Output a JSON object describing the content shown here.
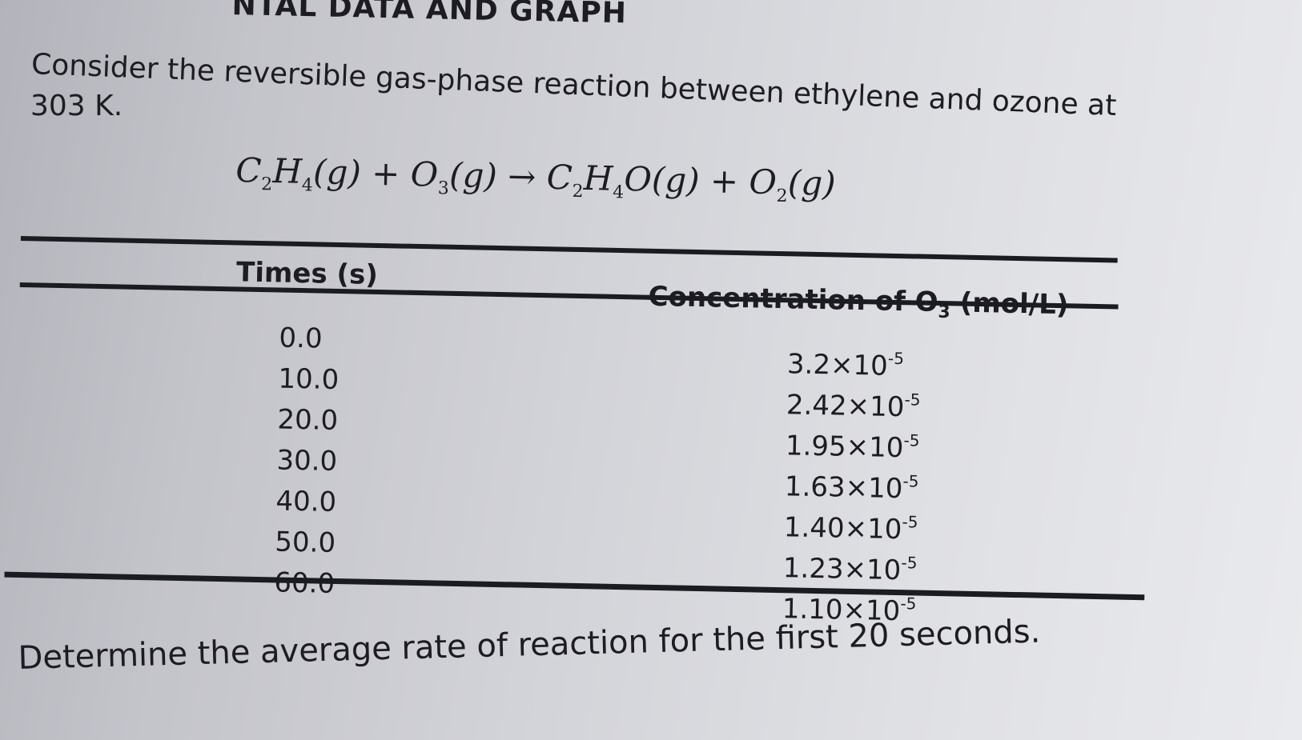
{
  "heading": "NTAL DATA AND GRAPH",
  "intro": {
    "line1": "Consider the reversible gas-phase reaction between ethylene and ozone at",
    "line2": "303 K."
  },
  "equation": {
    "r1_sym_a": "C",
    "r1_sub_a": "2",
    "r1_sym_b": "H",
    "r1_sub_b": "4",
    "r1_phase": "(g)",
    "plus1": "+",
    "r2_sym": "O",
    "r2_sub": "3",
    "r2_phase": "(g)",
    "arrow": "→",
    "p1_sym_a": "C",
    "p1_sub_a": "2",
    "p1_sym_b": "H",
    "p1_sub_b": "4",
    "p1_sym_c": "O",
    "p1_phase": "(g)",
    "plus2": "+",
    "p2_sym": "O",
    "p2_sub": "2",
    "p2_phase": "(g)"
  },
  "table": {
    "time_header": "Times (s)",
    "conc_header_prefix": "Concentration of O",
    "conc_header_sub": "3",
    "conc_header_suffix": " (mol/L)",
    "rows": [
      {
        "time": "0.0",
        "mantissa": "3.2",
        "times_base": "×10",
        "exponent": "-5"
      },
      {
        "time": "10.0",
        "mantissa": "2.42",
        "times_base": "×10",
        "exponent": "-5"
      },
      {
        "time": "20.0",
        "mantissa": "1.95",
        "times_base": "×10",
        "exponent": "-5"
      },
      {
        "time": "30.0",
        "mantissa": "1.63",
        "times_base": "×10",
        "exponent": "-5"
      },
      {
        "time": "40.0",
        "mantissa": "1.40",
        "times_base": "×10",
        "exponent": "-5"
      },
      {
        "time": "50.0",
        "mantissa": "1.23",
        "times_base": "×10",
        "exponent": "-5"
      },
      {
        "time": "60.0",
        "mantissa": "1.10",
        "times_base": "×10",
        "exponent": "-5"
      }
    ]
  },
  "question": "Determine the average rate of reaction for the first 20 seconds."
}
